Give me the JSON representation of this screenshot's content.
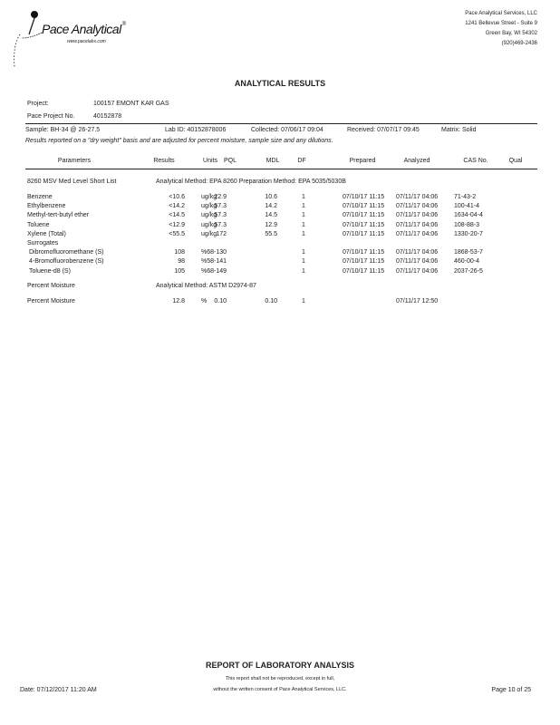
{
  "header": {
    "logo_text": "Pace Analytical",
    "logo_url": "www.pacelabs.com",
    "company": [
      "Pace Analytical Services, LLC",
      "1241 Bellevue Street - Suite 9",
      "Green Bay, WI 54302",
      "(920)469-2436"
    ]
  },
  "title": "ANALYTICAL RESULTS",
  "project": {
    "project_label": "Project:",
    "project_value": "100157 EMONT KAR GAS",
    "pace_no_label": "Pace Project No.",
    "pace_no_value": "40152878"
  },
  "sample": {
    "sample": "Sample:  BH-34 @ 26-27.5",
    "lab_id": "Lab ID:  40152878006",
    "collected": "Collected:  07/06/17 09:04",
    "received": "Received:  07/07/17 09:45",
    "matrix": "Matrix: Solid",
    "note": "Results reported on a \"dry weight\" basis and are adjusted for percent moisture, sample size and any dilutions."
  },
  "table": {
    "columns": [
      "Parameters",
      "Results",
      "Units",
      "PQL",
      "MDL",
      "DF",
      "Prepared",
      "Analyzed",
      "CAS No.",
      "Qual"
    ],
    "sections": [
      {
        "name": "8260 MSV Med Level Short List",
        "method": "Analytical Method: EPA 8260  Preparation Method: EPA 5035/5030B",
        "rows": [
          [
            "Benzene",
            "<10.6",
            "ug/kg",
            "22.9",
            "10.6",
            "1",
            "07/10/17 11:15",
            "07/11/17 04:06",
            "71-43-2",
            ""
          ],
          [
            "Ethylbenzene",
            "<14.2",
            "ug/kg",
            "57.3",
            "14.2",
            "1",
            "07/10/17 11:15",
            "07/11/17 04:06",
            "100-41-4",
            ""
          ],
          [
            "Methyl-tert-butyl ether",
            "<14.5",
            "ug/kg",
            "57.3",
            "14.5",
            "1",
            "07/10/17 11:15",
            "07/11/17 04:06",
            "1634-04-4",
            ""
          ],
          [
            "Toluene",
            "<12.9",
            "ug/kg",
            "57.3",
            "12.9",
            "1",
            "07/10/17 11:15",
            "07/11/17 04:06",
            "108-88-3",
            ""
          ],
          [
            "Xylene (Total)",
            "<55.5",
            "ug/kg",
            "172",
            "55.5",
            "1",
            "07/10/17 11:15",
            "07/11/17 04:06",
            "1330-20-7",
            ""
          ]
        ],
        "subheading": "Surrogates",
        "surrogates": [
          [
            "Dibromofluoromethane (S)",
            "108",
            "%",
            "68-130",
            "",
            "1",
            "07/10/17 11:15",
            "07/11/17 04:06",
            "1868-53-7",
            ""
          ],
          [
            "4-Bromofluorobenzene (S)",
            "98",
            "%",
            "58-141",
            "",
            "1",
            "07/10/17 11:15",
            "07/11/17 04:06",
            "460-00-4",
            ""
          ],
          [
            "Toluene-d8 (S)",
            "105",
            "%",
            "68-149",
            "",
            "1",
            "07/10/17 11:15",
            "07/11/17 04:06",
            "2037-26-5",
            ""
          ]
        ]
      },
      {
        "name": "Percent Moisture",
        "method": "Analytical Method: ASTM D2974-87",
        "rows": [
          [
            "Percent Moisture",
            "12.8",
            "%",
            "0.10",
            "0.10",
            "1",
            "",
            "07/11/17 12:50",
            "",
            ""
          ]
        ]
      }
    ]
  },
  "footer": {
    "title": "REPORT OF LABORATORY ANALYSIS",
    "notice_1": "This report shall not be reproduced, except in full,",
    "notice_2": "without the written consent of Pace Analytical Services, LLC.",
    "date": "Date: 07/12/2017 11:20 AM",
    "page": "Page 10 of 25"
  }
}
